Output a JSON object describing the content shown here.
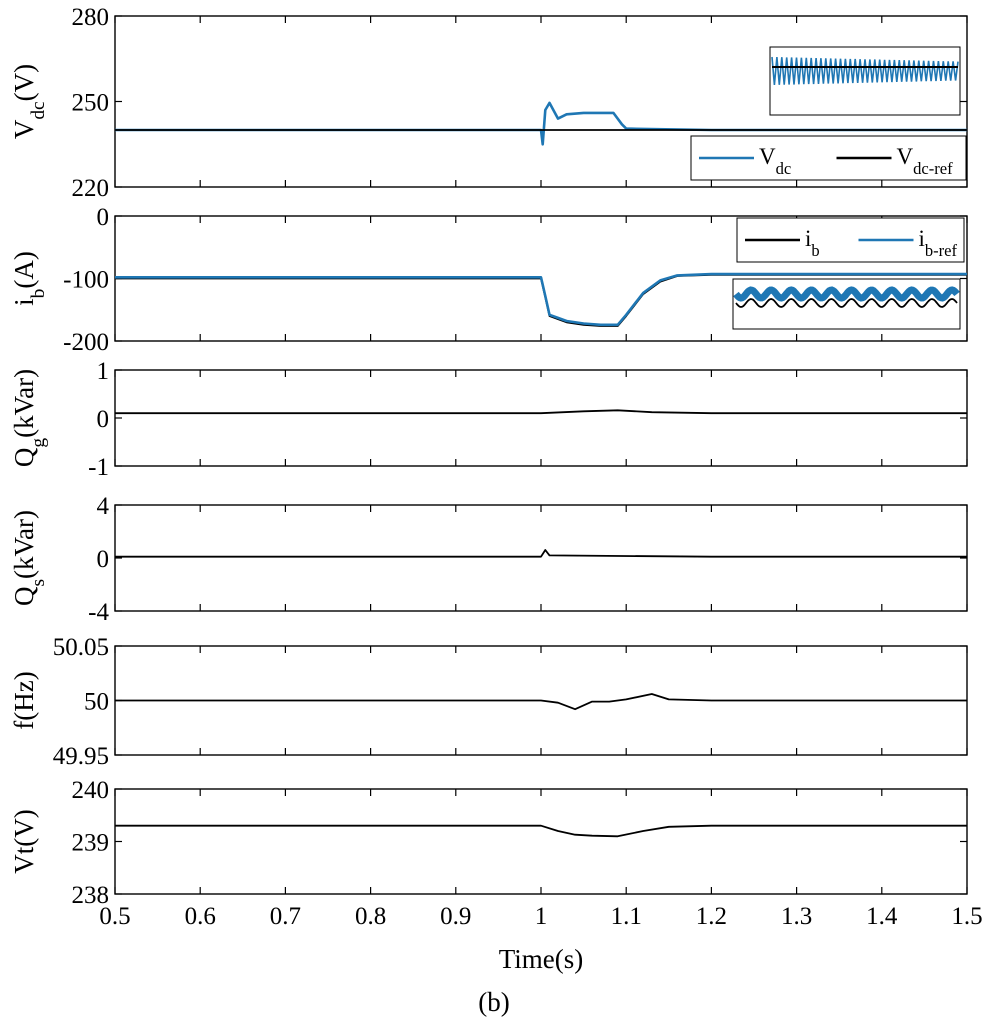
{
  "caption": "(b)",
  "xlabel": "Time(s)",
  "x_ticks": [
    "0.5",
    "0.6",
    "0.7",
    "0.8",
    "0.9",
    "1",
    "1.1",
    "1.2",
    "1.3",
    "1.4",
    "1.5"
  ],
  "colors": {
    "blue": "#1f77b4",
    "black": "#000000"
  },
  "chart_data": [
    {
      "type": "line",
      "id": "vdc",
      "ylabel": {
        "base": "V",
        "sub": "dc",
        "tail": "(V)"
      },
      "xlim": [
        0.5,
        1.5
      ],
      "ylim": [
        220,
        280
      ],
      "y_ticks": [
        "220",
        "250",
        "280"
      ],
      "legend_position": "bottom-right",
      "legend": [
        {
          "base": "V",
          "sub": "dc",
          "color": "#1f77b4"
        },
        {
          "base": "V",
          "sub": "dc-ref",
          "color": "#000000"
        }
      ],
      "inset": "top-right",
      "series": [
        {
          "name": "V_dc",
          "color": "#1f77b4",
          "x": [
            0.5,
            1.0,
            1.002,
            1.005,
            1.01,
            1.02,
            1.03,
            1.05,
            1.07,
            1.085,
            1.095,
            1.1,
            1.2,
            1.5
          ],
          "y": [
            240,
            240,
            235,
            247,
            249.5,
            244,
            245.5,
            246,
            246,
            246,
            242,
            240.5,
            240,
            240
          ]
        },
        {
          "name": "V_dc-ref",
          "color": "#000000",
          "x": [
            0.5,
            1.5
          ],
          "y": [
            240,
            240
          ]
        }
      ]
    },
    {
      "type": "line",
      "id": "ib",
      "ylabel": {
        "base": "i",
        "sub": "b",
        "tail": "(A)"
      },
      "xlim": [
        0.5,
        1.5
      ],
      "ylim": [
        -200,
        0
      ],
      "y_ticks": [
        "-200",
        "-100",
        "0"
      ],
      "legend_position": "top-right",
      "legend": [
        {
          "base": "i",
          "sub": "b",
          "color": "#000000"
        },
        {
          "base": "i",
          "sub": "b-ref",
          "color": "#1f77b4"
        }
      ],
      "inset": "bottom-right",
      "series": [
        {
          "name": "i_b",
          "color": "#000000",
          "x": [
            0.5,
            1.0,
            1.005,
            1.01,
            1.02,
            1.03,
            1.05,
            1.07,
            1.09,
            1.1,
            1.12,
            1.14,
            1.16,
            1.2,
            1.5
          ],
          "y": [
            -100,
            -100,
            -130,
            -160,
            -165,
            -170,
            -174,
            -176,
            -176,
            -160,
            -125,
            -105,
            -96,
            -94,
            -94
          ]
        },
        {
          "name": "i_b-ref",
          "color": "#1f77b4",
          "x": [
            0.5,
            1.0,
            1.005,
            1.01,
            1.02,
            1.03,
            1.05,
            1.07,
            1.09,
            1.1,
            1.12,
            1.14,
            1.16,
            1.2,
            1.5
          ],
          "y": [
            -98,
            -98,
            -128,
            -158,
            -163,
            -168,
            -172,
            -174,
            -174,
            -158,
            -123,
            -103,
            -95,
            -93,
            -93
          ]
        }
      ]
    },
    {
      "type": "line",
      "id": "qg",
      "ylabel": {
        "base": "Q",
        "sub": "g",
        "tail": "(kVar)"
      },
      "xlim": [
        0.5,
        1.5
      ],
      "ylim": [
        -1,
        1
      ],
      "y_ticks": [
        "-1",
        "0",
        "1"
      ],
      "series": [
        {
          "color": "#000000",
          "x": [
            0.5,
            1.0,
            1.05,
            1.09,
            1.13,
            1.2,
            1.5
          ],
          "y": [
            0.1,
            0.1,
            0.14,
            0.16,
            0.12,
            0.1,
            0.1
          ]
        }
      ]
    },
    {
      "type": "line",
      "id": "qs",
      "ylabel": {
        "base": "Q",
        "sub": "s",
        "tail": "(kVar)"
      },
      "xlim": [
        0.5,
        1.5
      ],
      "ylim": [
        -4,
        4
      ],
      "y_ticks": [
        "-4",
        "0",
        "4"
      ],
      "series": [
        {
          "color": "#000000",
          "x": [
            0.5,
            1.0,
            1.005,
            1.01,
            1.2,
            1.5
          ],
          "y": [
            0.1,
            0.1,
            0.6,
            0.2,
            0.1,
            0.1
          ]
        }
      ]
    },
    {
      "type": "line",
      "id": "freq",
      "ylabel": {
        "base": "f(Hz)",
        "sub": "",
        "tail": ""
      },
      "xlim": [
        0.5,
        1.5
      ],
      "ylim": [
        49.95,
        50.05
      ],
      "y_ticks": [
        "49.95",
        "50",
        "50.05"
      ],
      "series": [
        {
          "color": "#000000",
          "x": [
            0.5,
            1.0,
            1.02,
            1.04,
            1.06,
            1.08,
            1.1,
            1.13,
            1.15,
            1.2,
            1.5
          ],
          "y": [
            50,
            50,
            49.998,
            49.992,
            49.999,
            49.999,
            50.001,
            50.006,
            50.001,
            50,
            50
          ]
        }
      ]
    },
    {
      "type": "line",
      "id": "vt",
      "ylabel": {
        "base": "Vt(V)",
        "sub": "",
        "tail": ""
      },
      "xlim": [
        0.5,
        1.5
      ],
      "ylim": [
        238,
        240
      ],
      "y_ticks": [
        "238",
        "239",
        "240"
      ],
      "series": [
        {
          "color": "#000000",
          "x": [
            0.5,
            1.0,
            1.02,
            1.04,
            1.06,
            1.09,
            1.12,
            1.15,
            1.2,
            1.5
          ],
          "y": [
            239.3,
            239.3,
            239.2,
            239.13,
            239.11,
            239.1,
            239.2,
            239.28,
            239.3,
            239.3
          ]
        }
      ]
    }
  ]
}
